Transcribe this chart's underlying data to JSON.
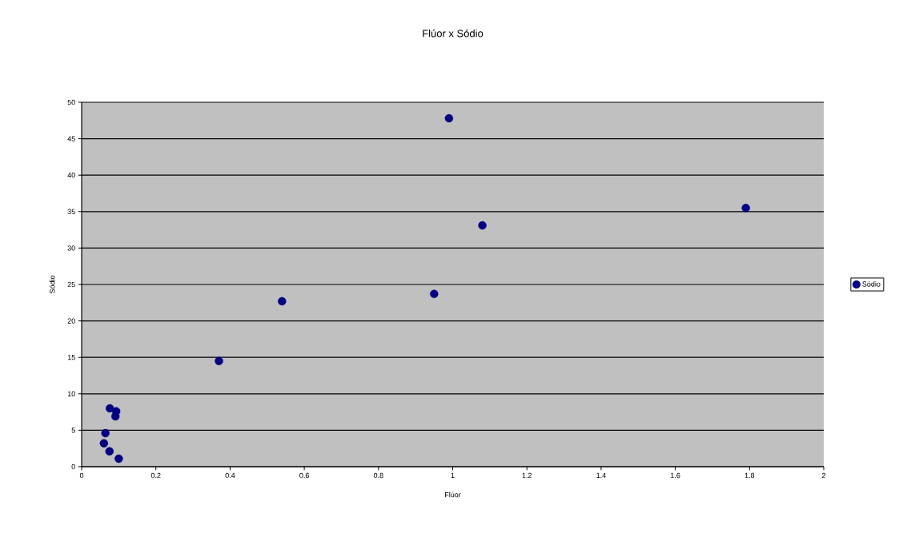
{
  "chart_data": {
    "type": "scatter",
    "title": "Flúor x Sódio",
    "xlabel": "Flúor",
    "ylabel": "Sódio",
    "x": [
      0.076,
      0.093,
      0.091,
      0.064,
      0.06,
      0.075,
      0.1,
      0.37,
      0.54,
      0.95,
      0.99,
      1.08,
      1.79
    ],
    "series": [
      {
        "name": "Sódio",
        "color": "#000080",
        "values": [
          8.0,
          7.6,
          6.9,
          4.6,
          3.2,
          2.1,
          1.1,
          14.5,
          22.7,
          23.7,
          47.8,
          33.1,
          35.5
        ]
      }
    ],
    "xlim": [
      0,
      2
    ],
    "xticks": [
      0,
      0.2,
      0.4,
      0.6,
      0.8,
      1,
      1.2,
      1.4,
      1.6,
      1.8,
      2
    ],
    "ylim": [
      0,
      50
    ],
    "yticks": [
      0,
      5,
      10,
      15,
      20,
      25,
      30,
      35,
      40,
      45,
      50
    ],
    "grid": "y",
    "legend": "right",
    "marker": "circle"
  }
}
